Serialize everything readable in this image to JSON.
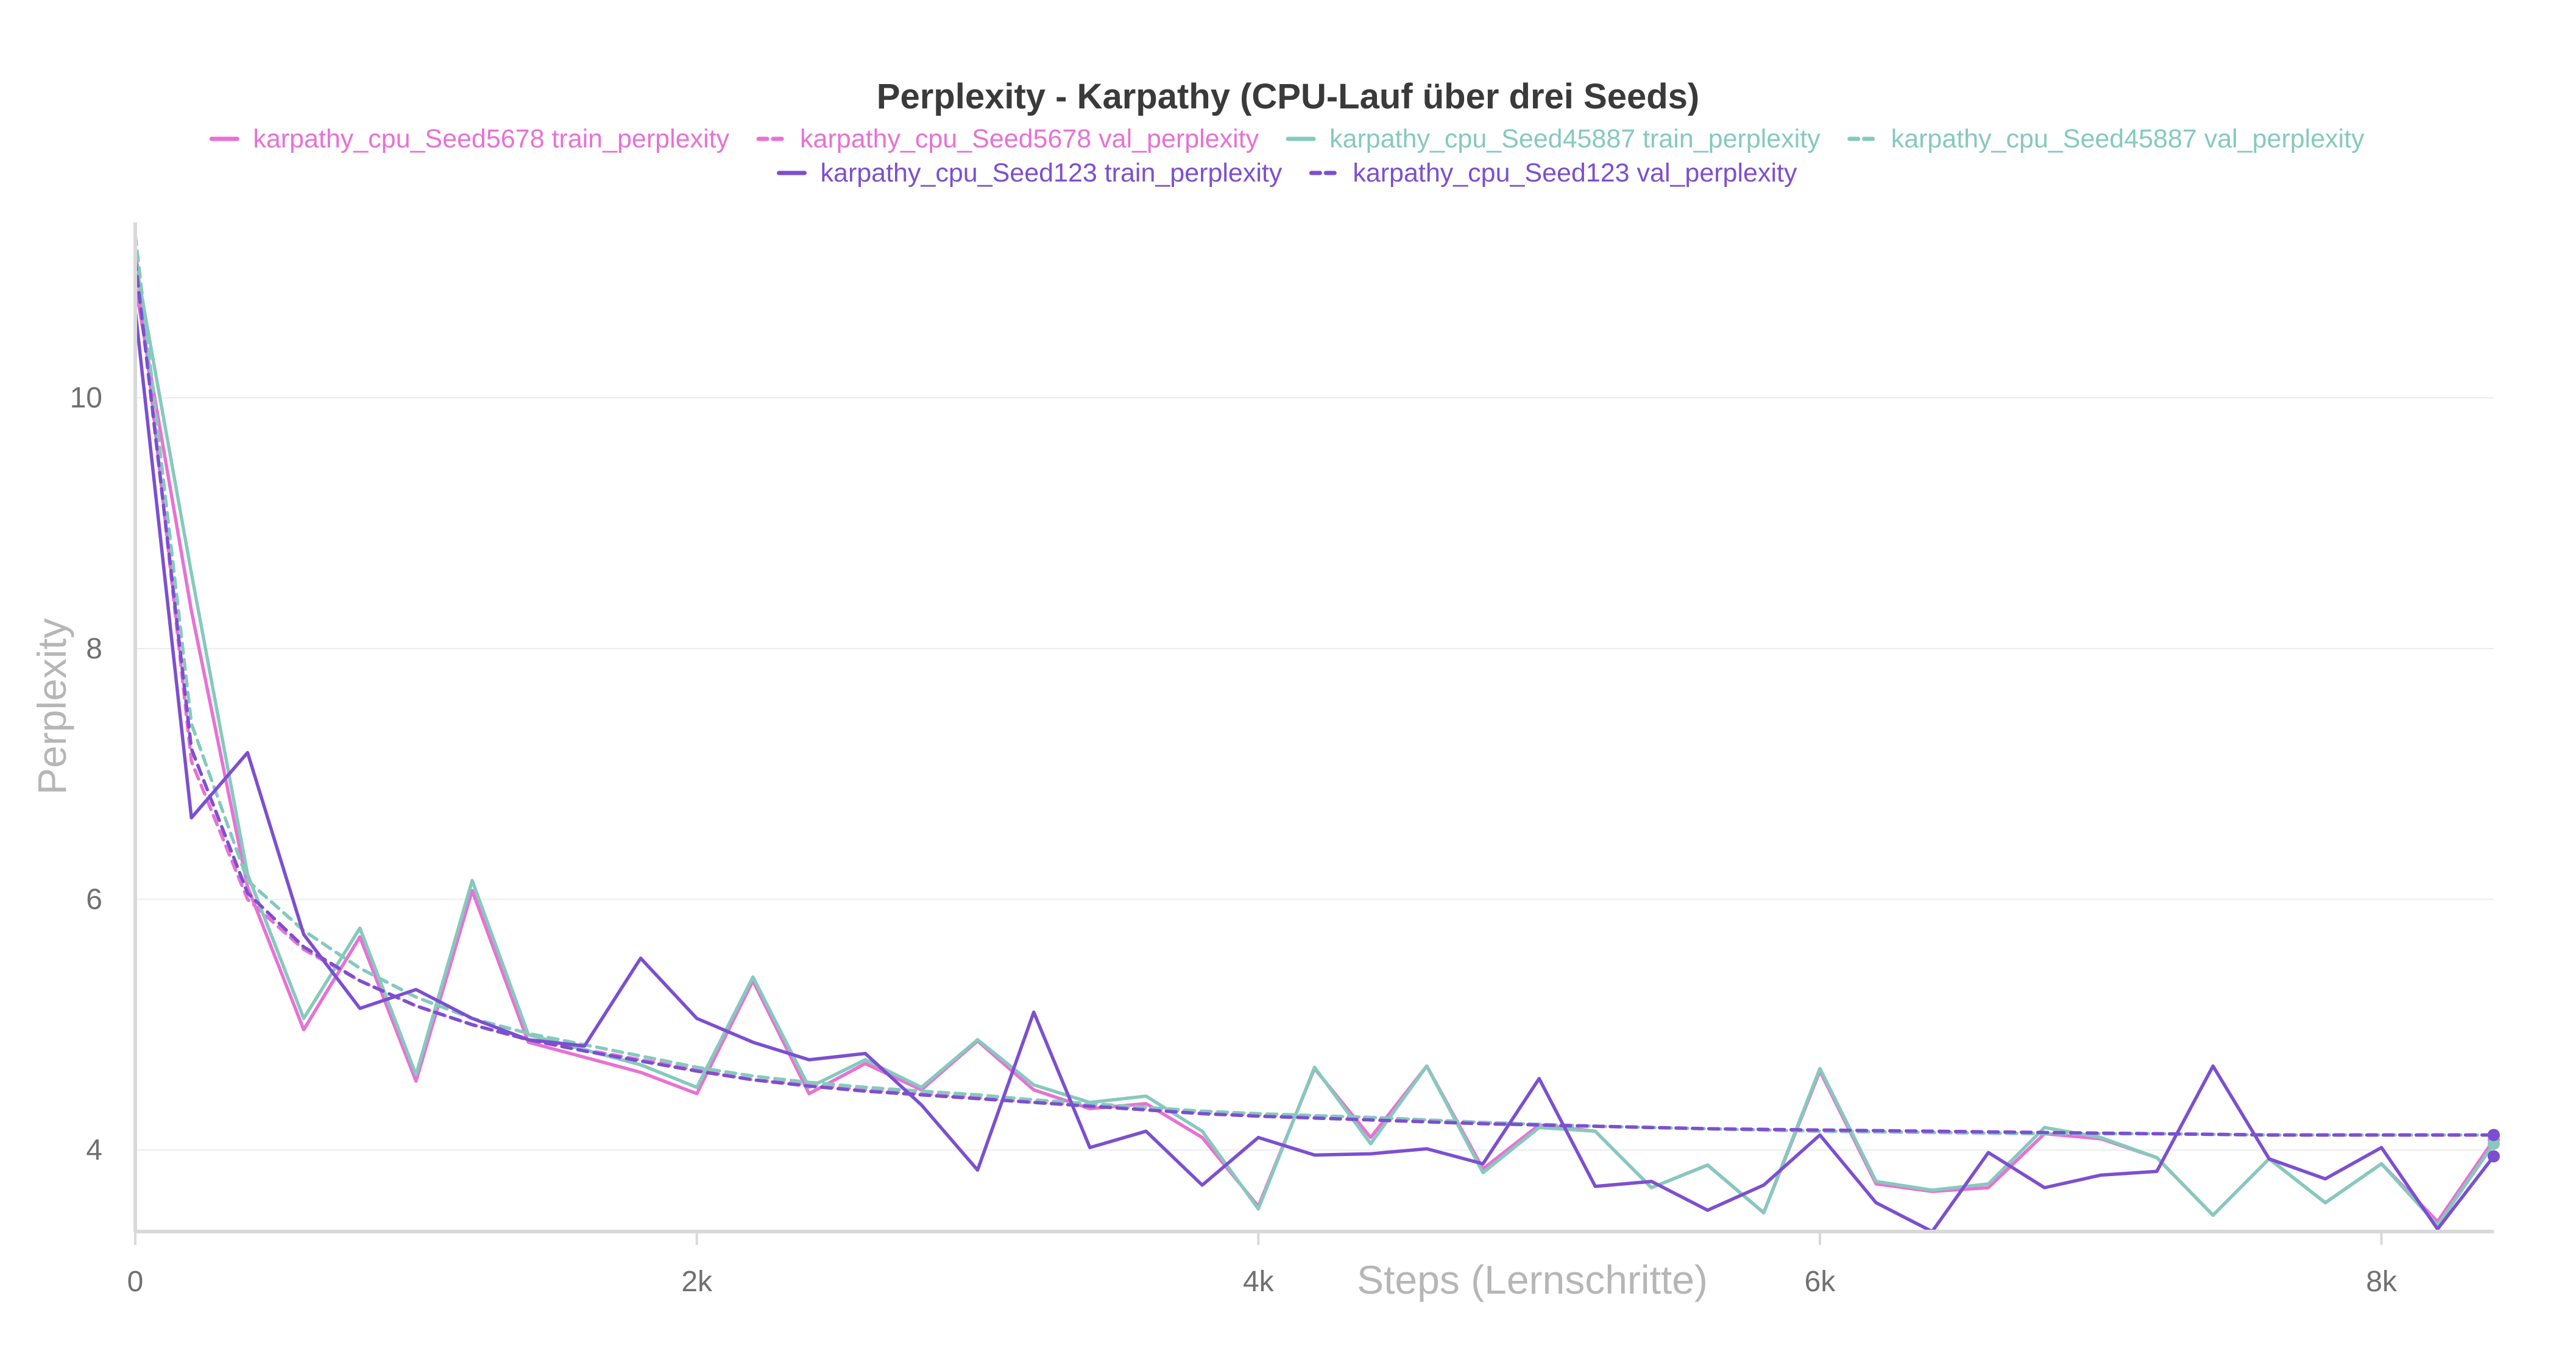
{
  "chart_data": {
    "type": "line",
    "title": "Perplexity - Karpathy (CPU-Lauf über drei Seeds)",
    "xlabel": "Steps (Lernschritte)",
    "ylabel": "Perplexity",
    "xlim": [
      0,
      8400
    ],
    "ylim": [
      3.35,
      11.4
    ],
    "x_ticks": [
      0,
      2000,
      4000,
      6000,
      8000
    ],
    "x_tick_labels": [
      "0",
      "2k",
      "4k",
      "6k",
      "8k"
    ],
    "y_ticks": [
      4,
      6,
      8,
      10
    ],
    "y_tick_labels": [
      "4",
      "6",
      "8",
      "10"
    ],
    "grid": true,
    "legend_position": "top-center",
    "series": [
      {
        "name": "karpathy_cpu_Seed5678 train_perplexity",
        "color": "#e871d4",
        "dash": "solid",
        "x": [
          0,
          200,
          400,
          600,
          800,
          1000,
          1200,
          1400,
          1600,
          1800,
          2000,
          2200,
          2400,
          2600,
          2800,
          3000,
          3200,
          3400,
          3600,
          3800,
          4000,
          4200,
          4400,
          4600,
          4800,
          5000,
          5200,
          5400,
          5600,
          5800,
          6000,
          6200,
          6400,
          6600,
          6800,
          7000,
          7200,
          7400,
          7600,
          7800,
          8000,
          8200,
          8400
        ],
        "y": [
          10.9,
          8.3,
          6.1,
          4.96,
          5.7,
          4.55,
          6.07,
          4.86,
          4.74,
          4.62,
          4.45,
          5.35,
          4.45,
          4.69,
          4.48,
          4.87,
          4.48,
          4.33,
          4.37,
          4.1,
          3.55,
          4.65,
          4.1,
          4.67,
          3.85,
          4.2,
          4.15,
          3.7,
          3.88,
          3.5,
          4.63,
          3.73,
          3.67,
          3.7,
          4.13,
          4.09,
          3.94,
          3.48,
          3.93,
          3.58,
          3.89,
          3.43,
          4.08
        ]
      },
      {
        "name": "karpathy_cpu_Seed5678 val_perplexity",
        "color": "#e871d4",
        "dash": "dashed",
        "x": [
          0,
          200,
          400,
          600,
          800,
          1000,
          1200,
          1400,
          1600,
          1800,
          2000,
          2200,
          2400,
          2600,
          2800,
          3000,
          3200,
          3400,
          3600,
          3800,
          4000,
          4400,
          4800,
          5200,
          5600,
          6000,
          6400,
          6800,
          7200,
          7600,
          8000,
          8400
        ],
        "y": [
          11.2,
          7.1,
          6.0,
          5.6,
          5.35,
          5.15,
          5.0,
          4.88,
          4.8,
          4.72,
          4.64,
          4.56,
          4.52,
          4.48,
          4.45,
          4.42,
          4.38,
          4.36,
          4.33,
          4.3,
          4.28,
          4.26,
          4.22,
          4.19,
          4.17,
          4.15,
          4.14,
          4.13,
          4.13,
          4.12,
          4.12,
          4.12
        ]
      },
      {
        "name": "karpathy_cpu_Seed45887 train_perplexity",
        "color": "#86c9bd",
        "dash": "solid",
        "x": [
          0,
          200,
          400,
          600,
          800,
          1000,
          1200,
          1400,
          1600,
          1800,
          2000,
          2200,
          2400,
          2600,
          2800,
          3000,
          3200,
          3400,
          3600,
          3800,
          4000,
          4200,
          4400,
          4600,
          4800,
          5000,
          5200,
          5400,
          5600,
          5800,
          6000,
          6200,
          6400,
          6600,
          6800,
          7000,
          7200,
          7400,
          7600,
          7800,
          8000,
          8200,
          8400
        ],
        "y": [
          11.1,
          8.6,
          6.2,
          5.05,
          5.77,
          4.6,
          6.15,
          4.92,
          4.8,
          4.68,
          4.5,
          5.38,
          4.5,
          4.72,
          4.5,
          4.88,
          4.52,
          4.38,
          4.43,
          4.15,
          3.53,
          4.66,
          4.05,
          4.67,
          3.82,
          4.18,
          4.15,
          3.7,
          3.88,
          3.5,
          4.65,
          3.75,
          3.68,
          3.73,
          4.18,
          4.1,
          3.94,
          3.48,
          3.93,
          3.58,
          3.89,
          3.4,
          4.05
        ]
      },
      {
        "name": "karpathy_cpu_Seed45887 val_perplexity",
        "color": "#86c9bd",
        "dash": "dashed",
        "x": [
          0,
          200,
          400,
          600,
          800,
          1000,
          1200,
          1400,
          1600,
          1800,
          2000,
          2200,
          2400,
          2600,
          2800,
          3000,
          3200,
          3400,
          3600,
          3800,
          4000,
          4400,
          4800,
          5200,
          5600,
          6000,
          6400,
          6800,
          7200,
          7600,
          8000,
          8400
        ],
        "y": [
          11.3,
          7.4,
          6.15,
          5.75,
          5.45,
          5.22,
          5.05,
          4.93,
          4.84,
          4.75,
          4.66,
          4.59,
          4.54,
          4.5,
          4.47,
          4.44,
          4.4,
          4.37,
          4.34,
          4.31,
          4.29,
          4.26,
          4.22,
          4.19,
          4.17,
          4.15,
          4.14,
          4.13,
          4.13,
          4.12,
          4.12,
          4.12
        ]
      },
      {
        "name": "karpathy_cpu_Seed123 train_perplexity",
        "color": "#7c4fd0",
        "dash": "solid",
        "x": [
          0,
          200,
          400,
          600,
          800,
          1000,
          1200,
          1400,
          1600,
          1800,
          2000,
          2200,
          2400,
          2600,
          2800,
          3000,
          3200,
          3400,
          3600,
          3800,
          4000,
          4200,
          4400,
          4600,
          4800,
          5000,
          5200,
          5400,
          5600,
          5800,
          6000,
          6200,
          6400,
          6600,
          6800,
          7000,
          7200,
          7400,
          7600,
          7800,
          8000,
          8200,
          8400
        ],
        "y": [
          10.7,
          6.65,
          7.17,
          5.72,
          5.13,
          5.28,
          5.05,
          4.88,
          4.83,
          5.53,
          5.05,
          4.86,
          4.72,
          4.77,
          4.36,
          3.84,
          5.1,
          4.02,
          4.15,
          3.72,
          4.1,
          3.96,
          3.97,
          4.01,
          3.89,
          4.57,
          3.71,
          3.75,
          3.52,
          3.72,
          4.12,
          3.58,
          3.35,
          3.98,
          3.7,
          3.8,
          3.83,
          4.67,
          3.93,
          3.77,
          4.02,
          3.37,
          3.95
        ]
      },
      {
        "name": "karpathy_cpu_Seed123 val_perplexity",
        "color": "#7c4fd0",
        "dash": "dashed",
        "x": [
          0,
          200,
          400,
          600,
          800,
          1000,
          1200,
          1400,
          1600,
          1800,
          2000,
          2200,
          2400,
          2600,
          2800,
          3000,
          3200,
          3400,
          3600,
          3800,
          4000,
          4400,
          4800,
          5200,
          5600,
          6000,
          6400,
          6800,
          7200,
          7600,
          8000,
          8400
        ],
        "y": [
          11.1,
          7.2,
          6.05,
          5.62,
          5.35,
          5.15,
          5.0,
          4.88,
          4.79,
          4.71,
          4.63,
          4.56,
          4.51,
          4.47,
          4.44,
          4.41,
          4.38,
          4.35,
          4.32,
          4.29,
          4.27,
          4.24,
          4.21,
          4.19,
          4.17,
          4.16,
          4.15,
          4.14,
          4.13,
          4.12,
          4.12,
          4.12
        ]
      }
    ]
  }
}
